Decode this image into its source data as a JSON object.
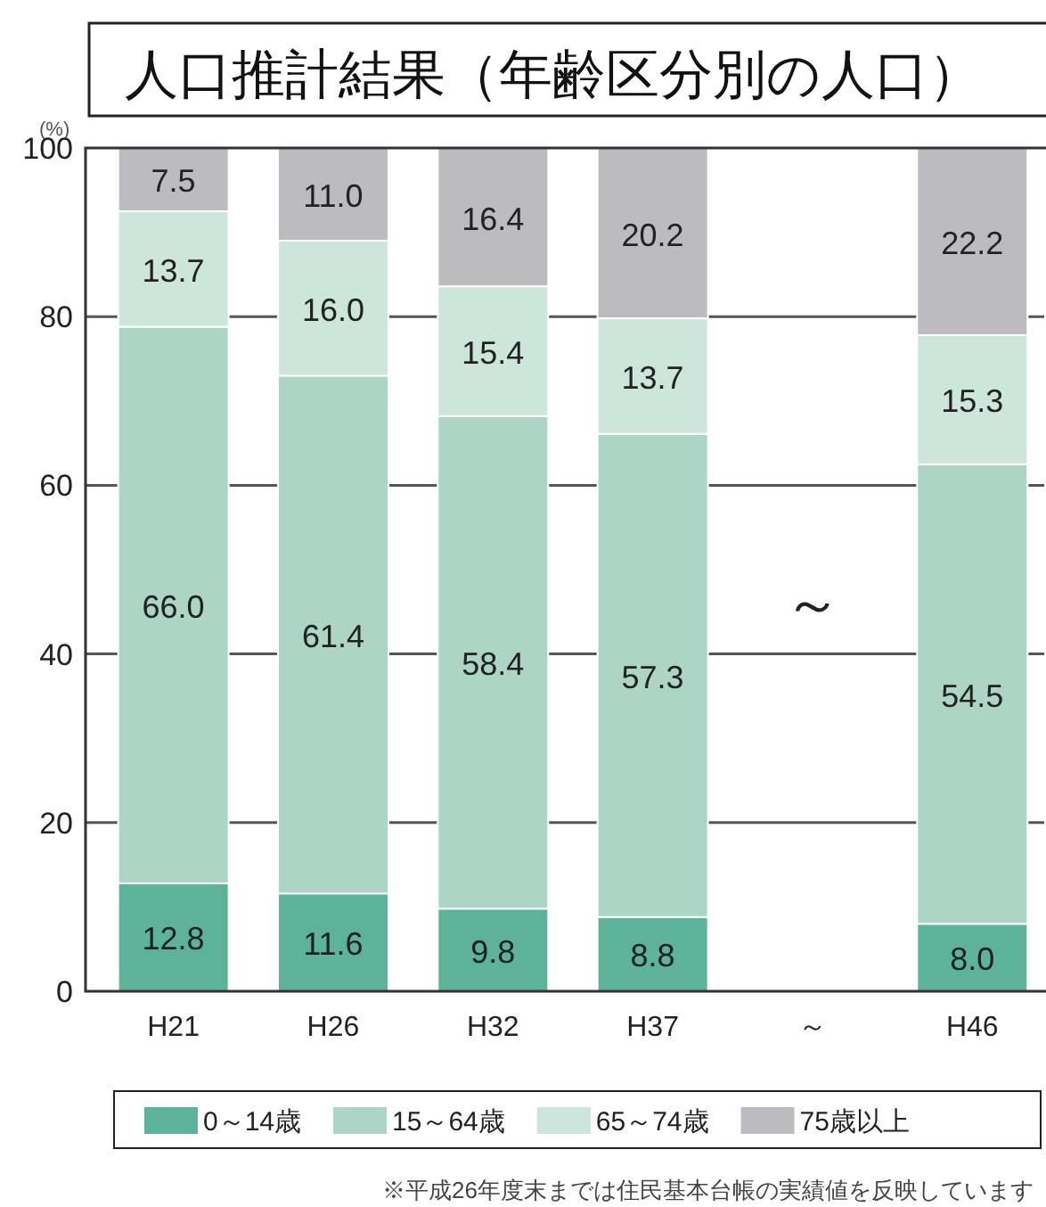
{
  "chart_data": {
    "type": "bar",
    "stacked": true,
    "title": "人口推計結果（年齢区分別の人口）",
    "ylabel": "(%)",
    "categories": [
      "H21",
      "H26",
      "H32",
      "H37",
      "～",
      "H46"
    ],
    "series": [
      {
        "name": "0～14歳",
        "color": "#5db39a",
        "values": [
          12.8,
          11.6,
          9.8,
          8.8,
          null,
          8.0
        ],
        "value_labels": [
          "12.8",
          "11.6",
          "9.8",
          "8.8",
          null,
          "8.0"
        ]
      },
      {
        "name": "15～64歳",
        "color": "#acd5c6",
        "values": [
          66.0,
          61.4,
          58.4,
          57.3,
          null,
          54.5
        ],
        "value_labels": [
          "66.0",
          "61.4",
          "58.4",
          "57.3",
          null,
          "54.5"
        ]
      },
      {
        "name": "65～74歳",
        "color": "#cde6dc",
        "values": [
          13.7,
          16.0,
          15.4,
          13.7,
          null,
          15.3
        ],
        "value_labels": [
          "13.7",
          "16.0",
          "15.4",
          "13.7",
          null,
          "15.3"
        ]
      },
      {
        "name": "75歳以上",
        "color": "#bcbcc0",
        "values": [
          7.5,
          11.0,
          16.4,
          20.2,
          null,
          22.2
        ],
        "value_labels": [
          "7.5",
          "11.0",
          "16.4",
          "20.2",
          null,
          "22.2"
        ]
      }
    ],
    "ylim": [
      0,
      100
    ],
    "yticks": [
      0,
      20,
      40,
      60,
      80,
      100
    ],
    "grid": "y",
    "legend": "bottom",
    "annotations": [
      "～",
      "※平成26年度末までは住民基本台帳の実績値を反映しています"
    ]
  }
}
